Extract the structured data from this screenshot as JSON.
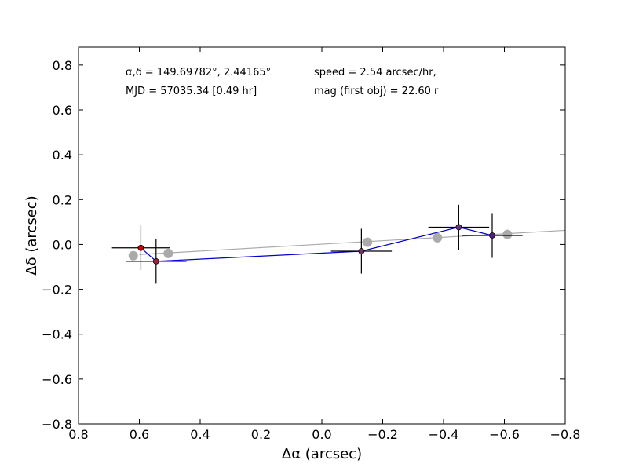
{
  "chart_data": {
    "type": "scatter",
    "title": "",
    "xlabel": "Δα (arcsec)",
    "ylabel": "Δδ (arcsec)",
    "xlim": [
      0.8,
      -0.8
    ],
    "ylim": [
      -0.8,
      0.88
    ],
    "x_ticks": [
      0.8,
      0.6,
      0.4,
      0.2,
      0.0,
      -0.2,
      -0.4,
      -0.6,
      -0.8
    ],
    "x_tick_labels": [
      "0.8",
      "0.6",
      "0.4",
      "0.2",
      "0.0",
      "−0.2",
      "−0.4",
      "−0.6",
      "−0.8"
    ],
    "y_ticks": [
      0.8,
      0.6,
      0.4,
      0.2,
      0.0,
      -0.2,
      -0.4,
      -0.6,
      -0.8
    ],
    "y_tick_labels": [
      "0.8",
      "0.6",
      "0.4",
      "0.2",
      "0.0",
      "−0.2",
      "−0.4",
      "−0.6",
      "−0.8"
    ],
    "annotations": {
      "coords": "α,δ = 149.69782°, 2.44165°",
      "speed": "speed = 2.54 arcsec/hr,",
      "mjd": "MJD = 57035.34 [0.49 hr]",
      "mag": "mag (first obj) = 22.60 r"
    },
    "fit_line": {
      "name": "linear fit",
      "color": "#aaaaaa",
      "points": [
        [
          0.6,
          -0.045
        ],
        [
          -0.8,
          0.063
        ]
      ]
    },
    "model_points": {
      "name": "predicted positions",
      "color": "#aaaaaa",
      "x": [
        0.62,
        0.505,
        -0.15,
        -0.38,
        -0.61
      ],
      "y": [
        -0.05,
        -0.04,
        0.01,
        0.03,
        0.045
      ]
    },
    "observed": {
      "name": "observed positions",
      "line_color": "#0000cc",
      "x": [
        0.595,
        0.545,
        -0.13,
        -0.45,
        -0.56
      ],
      "y": [
        -0.015,
        -0.075,
        -0.03,
        0.077,
        0.04
      ],
      "x_err": [
        0.095,
        0.1,
        0.1,
        0.1,
        0.1
      ],
      "y_err": [
        0.1,
        0.1,
        0.1,
        0.1,
        0.1
      ],
      "colors": [
        "#cc0000",
        "#a51e3c",
        "#73336a",
        "#6d2f8e",
        "#551a8b"
      ]
    }
  }
}
